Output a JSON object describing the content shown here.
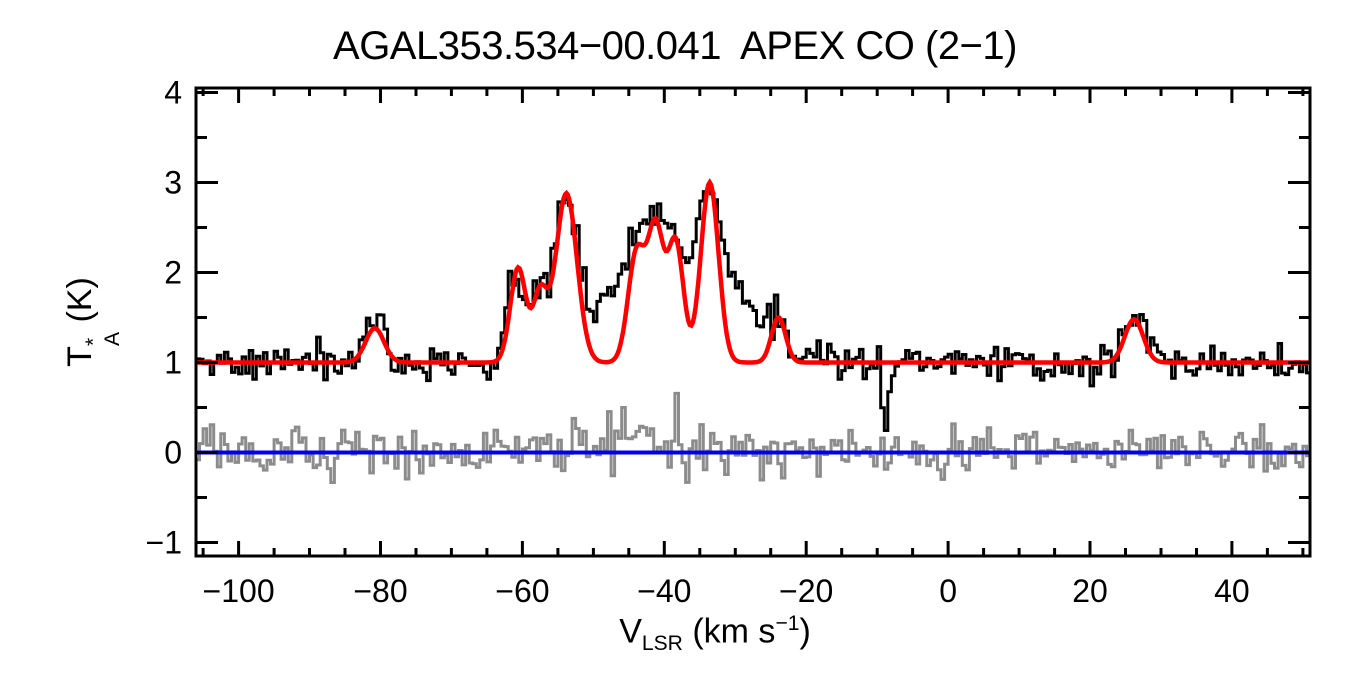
{
  "title": "AGAL353.534−00.041  APEX CO (2−1)",
  "axes": {
    "xlabel": {
      "main": "V",
      "sub": "LSR",
      "rest": " (km s",
      "sup": "−1",
      "close": ")"
    },
    "ylabel": {
      "main": "T",
      "sup": "*",
      "sub": "A",
      "rest": " (K)"
    },
    "x_range": [
      -106,
      51
    ],
    "y_range": [
      -1.15,
      4.05
    ],
    "x_major_ticks": [
      {
        "v": -100,
        "label": "−100"
      },
      {
        "v": -80,
        "label": "−80"
      },
      {
        "v": -60,
        "label": "−60"
      },
      {
        "v": -40,
        "label": "−40"
      },
      {
        "v": -20,
        "label": "−20"
      },
      {
        "v": 0,
        "label": "0"
      },
      {
        "v": 20,
        "label": "20"
      },
      {
        "v": 40,
        "label": "40"
      }
    ],
    "x_minor_step": 5,
    "y_major_ticks": [
      {
        "v": -1,
        "label": "−1"
      },
      {
        "v": 0,
        "label": "0"
      },
      {
        "v": 1,
        "label": "1"
      },
      {
        "v": 2,
        "label": "2"
      },
      {
        "v": 3,
        "label": "3"
      },
      {
        "v": 4,
        "label": "4"
      }
    ],
    "y_minor_step": 0.5
  },
  "colors": {
    "spectrum": "#000000",
    "fit": "#FF0000",
    "residual": "#8C8C8C",
    "zero_line": "#0000EE",
    "frame": "#000000",
    "background": "#FFFFFF"
  },
  "chart_data": {
    "type": "line",
    "title": "AGAL353.534−00.041  APEX CO (2−1)",
    "xlabel": "V_LSR (km s^-1)",
    "ylabel": "T_A^* (K)",
    "xlim": [
      -106,
      51
    ],
    "ylim": [
      -1.15,
      4.05
    ],
    "grid": false,
    "legend": false,
    "channel_width": 0.5,
    "noise_seed": 13,
    "gaussian_format": "[center_kms, peak_amplitude_K, sigma_kms]",
    "series": [
      {
        "name": "residual-spectrum",
        "style": "histogram",
        "color_ref": "residual",
        "stroke_width": 3,
        "baseline": 0.0,
        "noise_sigma": 0.12,
        "noise_boost": {
          "center": -40,
          "sigma": 12,
          "extra": 0.09
        },
        "gaussians": [
          [
            -34,
            0.15,
            2.5
          ],
          [
            -47,
            0.1,
            3.0
          ]
        ]
      },
      {
        "name": "zero-line",
        "style": "hline",
        "color_ref": "zero_line",
        "stroke_width": 4,
        "y": 0.0
      },
      {
        "name": "observed-spectrum",
        "style": "histogram",
        "color_ref": "spectrum",
        "stroke_width": 3,
        "baseline": 1.0,
        "noise_sigma": 0.11,
        "gaussians": [
          [
            -81.0,
            0.45,
            1.3
          ],
          [
            -61.0,
            1.0,
            1.3
          ],
          [
            -57.5,
            0.78,
            1.1
          ],
          [
            -53.9,
            1.8,
            1.5
          ],
          [
            -50.0,
            0.5,
            2.5
          ],
          [
            -46.5,
            0.45,
            2.0
          ],
          [
            -44.0,
            1.05,
            1.4
          ],
          [
            -41.2,
            1.4,
            1.3
          ],
          [
            -38.4,
            1.15,
            1.3
          ],
          [
            -36.0,
            0.55,
            1.3
          ],
          [
            -33.6,
            1.75,
            1.5
          ],
          [
            -29.5,
            0.75,
            2.2
          ],
          [
            -24.0,
            0.5,
            1.3
          ],
          [
            -8.8,
            -0.72,
            0.5
          ],
          [
            26.2,
            0.5,
            1.4
          ]
        ]
      },
      {
        "name": "fit-curve",
        "style": "smooth",
        "color_ref": "fit",
        "stroke_width": 4.5,
        "baseline": 1.0,
        "noise_sigma": 0,
        "gaussians": [
          [
            -80.8,
            0.38,
            1.3
          ],
          [
            -60.6,
            1.05,
            1.1
          ],
          [
            -57.5,
            0.75,
            1.0
          ],
          [
            -53.8,
            1.88,
            1.5
          ],
          [
            -43.9,
            1.22,
            1.2
          ],
          [
            -41.2,
            1.45,
            1.1
          ],
          [
            -38.4,
            1.33,
            1.1
          ],
          [
            -33.6,
            2.0,
            1.25
          ],
          [
            -23.9,
            0.5,
            1.0
          ],
          [
            26.2,
            0.48,
            1.3
          ]
        ]
      }
    ]
  }
}
